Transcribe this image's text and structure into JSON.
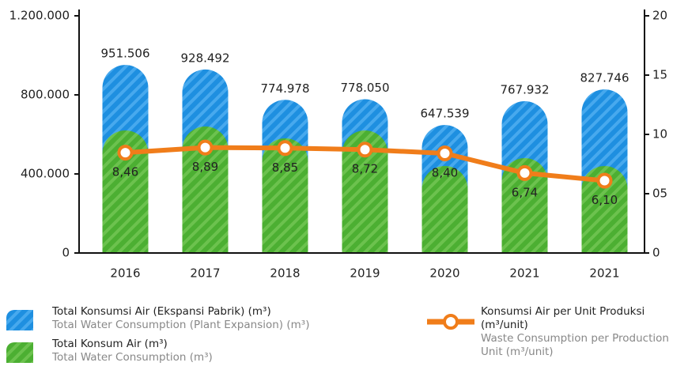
{
  "chart_data": {
    "type": "bar",
    "categories": [
      "2016",
      "2017",
      "2018",
      "2019",
      "2020",
      "2021",
      "2021"
    ],
    "ylim": [
      0,
      1200000
    ],
    "yticks": [
      0,
      {
        "value": 400000,
        "label": "400.000"
      },
      {
        "value": 800000,
        "label": "800.000"
      },
      {
        "value": 1200000,
        "label": "1.200.000"
      }
    ],
    "y2lim": [
      0,
      20
    ],
    "y2ticks": [
      0,
      {
        "value": 5,
        "label": "05"
      },
      10,
      15,
      20
    ],
    "series": [
      {
        "name": "Total Konsumsi Air (Ekspansi Pabrik) (m³)",
        "name_en": "Total Water Consumption (Plant Expansion) (m³)",
        "type": "bar",
        "color": "#1e8fe0",
        "values": [
          951506,
          928492,
          774978,
          778050,
          647539,
          767932,
          827746
        ],
        "value_labels": [
          "951.506",
          "928.492",
          "774.978",
          "778.050",
          "647.539",
          "767.932",
          "827.746"
        ]
      },
      {
        "name": "Total Konsum Air (m³)",
        "name_en": "Total Water Consumption (m³)",
        "type": "bar",
        "color": "#4caf32",
        "values": [
          620000,
          640000,
          580000,
          620000,
          440000,
          480000,
          440000
        ]
      },
      {
        "name": "Konsumsi Air per Unit Produksi (m³/unit)",
        "name_en": "Waste Consumption per Production Unit (m³/unit)",
        "type": "line",
        "axis": "y2",
        "color": "#f07d1a",
        "values": [
          8.46,
          8.89,
          8.85,
          8.72,
          8.4,
          6.74,
          6.1
        ],
        "value_labels": [
          "8,46",
          "8,89",
          "8,85",
          "8,72",
          "8,40",
          "6,74",
          "6,10"
        ]
      }
    ]
  }
}
